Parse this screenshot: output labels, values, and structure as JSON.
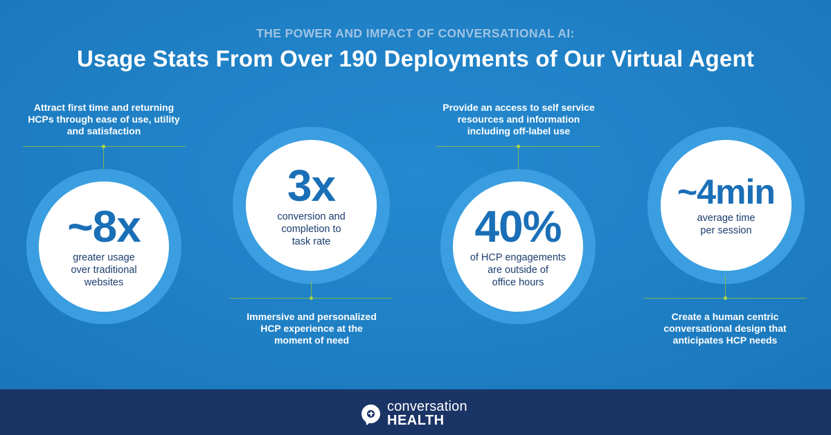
{
  "header": {
    "kicker": "THE POWER AND IMPACT OF CONVERSATIONAL AI:",
    "headline": "Usage Stats From Over 190 Deployments of Our Virtual Agent"
  },
  "stats": [
    {
      "value": "~8x",
      "description": [
        "greater usage",
        "over traditional",
        "websites"
      ],
      "caption": [
        "Attract first time and returning",
        "HCPs through ease of use, utility",
        "and satisfaction"
      ]
    },
    {
      "value": "3x",
      "description": [
        "conversion and",
        "completion to",
        "task rate"
      ],
      "caption": [
        "Immersive and personalized",
        "HCP experience at the",
        "moment of need"
      ]
    },
    {
      "value": "40%",
      "description": [
        "of HCP engagements",
        "are outside of",
        "office hours"
      ],
      "caption": [
        "Provide an access to self service",
        "resources and information",
        "including off-label use"
      ]
    },
    {
      "value": "~4min",
      "description": [
        "average time",
        "per session"
      ],
      "caption": [
        "Create a human centric",
        "conversational design that",
        "anticipates HCP needs"
      ]
    }
  ],
  "footer": {
    "logo_line1": "conversation",
    "logo_line2": "HEALTH"
  },
  "colors": {
    "background": "#1f80c5",
    "ring": "#3a9ee0",
    "stat_value": "#1a6fb7",
    "accent_line": "#8bc03f",
    "footer": "#1b3466"
  }
}
